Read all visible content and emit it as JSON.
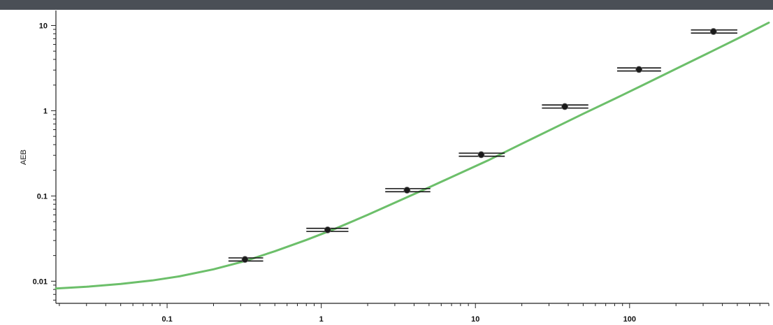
{
  "chart_data": {
    "type": "scatter",
    "title": "",
    "xlabel": "",
    "ylabel": "AEB",
    "x_scale": "log",
    "y_scale": "log",
    "xlim": [
      0.019,
      800
    ],
    "ylim": [
      0.0055,
      15
    ],
    "grid": false,
    "legend": "none",
    "x_ticks": [
      {
        "value": 0.1,
        "label": "0.1"
      },
      {
        "value": 1,
        "label": "1"
      },
      {
        "value": 10,
        "label": "10"
      },
      {
        "value": 100,
        "label": "100"
      }
    ],
    "y_ticks": [
      {
        "value": 0.01,
        "label": "0.01"
      },
      {
        "value": 0.1,
        "label": "0.1"
      },
      {
        "value": 1,
        "label": "1"
      },
      {
        "value": 10,
        "label": "10"
      }
    ],
    "series": [
      {
        "type": "scatter",
        "color": "#111111",
        "points": [
          {
            "x": 0.32,
            "y": 0.018,
            "x_low": 0.25,
            "x_high": 0.42
          },
          {
            "x": 1.1,
            "y": 0.04,
            "x_low": 0.8,
            "x_high": 1.5
          },
          {
            "x": 3.6,
            "y": 0.117,
            "x_low": 2.6,
            "x_high": 5.1
          },
          {
            "x": 10.9,
            "y": 0.305,
            "x_low": 7.8,
            "x_high": 15.5
          },
          {
            "x": 38,
            "y": 1.12,
            "x_low": 27,
            "x_high": 54
          },
          {
            "x": 115,
            "y": 3.05,
            "x_low": 83,
            "x_high": 160
          },
          {
            "x": 350,
            "y": 8.5,
            "x_low": 250,
            "x_high": 500
          }
        ]
      },
      {
        "type": "line",
        "color": "#6cbf6a",
        "x": [
          0.019,
          0.03,
          0.05,
          0.08,
          0.12,
          0.2,
          0.32,
          0.5,
          0.8,
          1.2,
          2,
          3.2,
          5,
          8,
          12,
          20,
          32,
          50,
          80,
          120,
          200,
          320,
          500,
          800
        ],
        "y": [
          0.0082,
          0.0086,
          0.0093,
          0.0102,
          0.0114,
          0.0138,
          0.0172,
          0.0225,
          0.0305,
          0.0405,
          0.06,
          0.088,
          0.126,
          0.186,
          0.26,
          0.41,
          0.62,
          0.92,
          1.38,
          1.97,
          3.1,
          4.7,
          7.0,
          10.8
        ]
      }
    ]
  }
}
